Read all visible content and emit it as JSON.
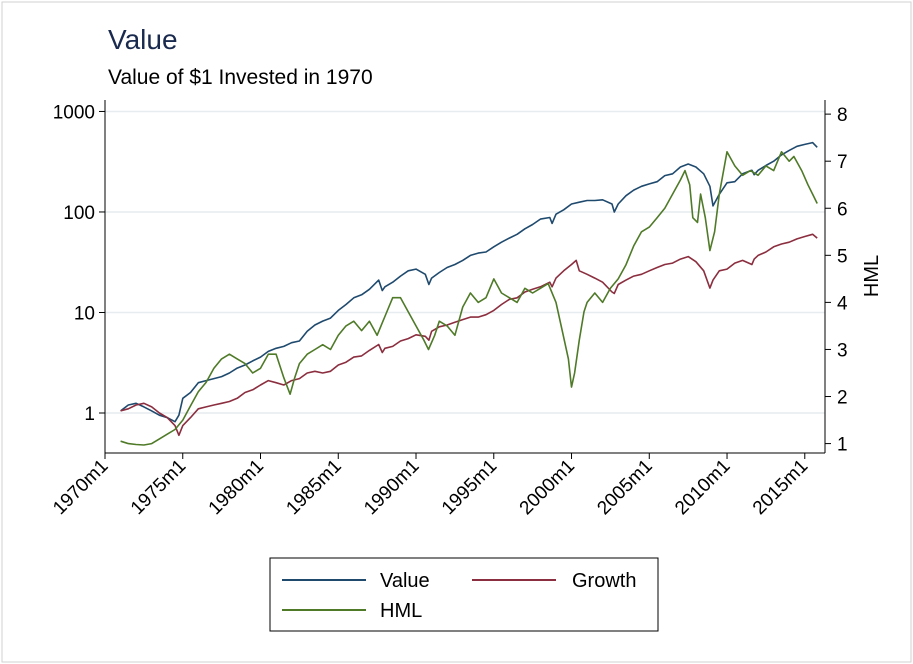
{
  "chart_data": {
    "type": "line",
    "title": "Value",
    "subtitle": "Value of $1 Invested in 1970",
    "x_tick_labels": [
      "1970m1",
      "1975m1",
      "1980m1",
      "1985m1",
      "1990m1",
      "1995m1",
      "2000m1",
      "2005m1",
      "2010m1",
      "2015m1"
    ],
    "x_tick_years": [
      1970,
      1975,
      1980,
      1985,
      1990,
      1995,
      2000,
      2005,
      2010,
      2015
    ],
    "xlim": [
      1970.0,
      2016.3
    ],
    "y_left": {
      "scale": "log",
      "ylim": [
        0.4,
        1300
      ],
      "ticks": [
        1,
        10,
        100,
        1000
      ],
      "tick_labels": [
        "1",
        "10",
        "100",
        "1000"
      ]
    },
    "y_right": {
      "label": "HML",
      "ylim": [
        0.8,
        8.3
      ],
      "ticks": [
        1,
        2,
        3,
        4,
        5,
        6,
        7,
        8
      ],
      "tick_labels": [
        "1",
        "2",
        "3",
        "4",
        "5",
        "6",
        "7",
        "8"
      ]
    },
    "grid": true,
    "legend_position": "bottom",
    "series": [
      {
        "name": "Value",
        "axis": "left",
        "color": "#1f4a6e",
        "x": [
          1971.0,
          1971.5,
          1972.0,
          1972.5,
          1973.0,
          1973.5,
          1974.0,
          1974.5,
          1974.75,
          1975.0,
          1975.5,
          1976.0,
          1976.5,
          1977.0,
          1977.5,
          1978.0,
          1978.5,
          1979.0,
          1979.5,
          1980.0,
          1980.5,
          1981.0,
          1981.5,
          1982.0,
          1982.5,
          1983.0,
          1983.5,
          1984.0,
          1984.5,
          1985.0,
          1985.5,
          1986.0,
          1986.5,
          1987.0,
          1987.6,
          1987.83,
          1988.0,
          1988.5,
          1989.0,
          1989.5,
          1990.0,
          1990.6,
          1990.83,
          1991.0,
          1991.5,
          1992.0,
          1992.5,
          1993.0,
          1993.5,
          1994.0,
          1994.5,
          1995.0,
          1995.5,
          1996.0,
          1996.5,
          1997.0,
          1997.5,
          1998.0,
          1998.6,
          1998.75,
          1999.0,
          1999.5,
          2000.0,
          2000.5,
          2001.0,
          2001.5,
          2002.0,
          2002.6,
          2002.75,
          2003.0,
          2003.5,
          2004.0,
          2004.5,
          2005.0,
          2005.5,
          2006.0,
          2006.5,
          2007.0,
          2007.5,
          2008.0,
          2008.5,
          2008.9,
          2009.1,
          2009.5,
          2010.0,
          2010.5,
          2011.0,
          2011.6,
          2011.75,
          2012.0,
          2012.5,
          2013.0,
          2013.5,
          2014.0,
          2014.5,
          2015.0,
          2015.5,
          2015.8
        ],
        "y": [
          1.05,
          1.2,
          1.25,
          1.15,
          1.05,
          0.95,
          0.9,
          0.82,
          0.95,
          1.4,
          1.6,
          2.0,
          2.1,
          2.2,
          2.3,
          2.5,
          2.8,
          3.0,
          3.3,
          3.6,
          4.1,
          4.4,
          4.6,
          5.0,
          5.2,
          6.5,
          7.5,
          8.2,
          8.8,
          10.5,
          12,
          14,
          15,
          17,
          21,
          16.5,
          18,
          20,
          23,
          26,
          27,
          24,
          19,
          22,
          25,
          28,
          30,
          33,
          37,
          39,
          40,
          45,
          50,
          55,
          60,
          68,
          75,
          85,
          88,
          77,
          95,
          105,
          120,
          125,
          130,
          130,
          132,
          120,
          100,
          120,
          145,
          165,
          180,
          190,
          200,
          230,
          240,
          280,
          300,
          280,
          240,
          180,
          115,
          150,
          195,
          200,
          240,
          260,
          235,
          260,
          290,
          320,
          370,
          410,
          450,
          470,
          490,
          440
        ]
      },
      {
        "name": "Growth",
        "axis": "left",
        "color": "#8b2e3f",
        "x": [
          1971.0,
          1971.5,
          1972.0,
          1972.5,
          1973.0,
          1973.5,
          1974.0,
          1974.5,
          1974.75,
          1975.0,
          1975.5,
          1976.0,
          1976.5,
          1977.0,
          1977.5,
          1978.0,
          1978.5,
          1979.0,
          1979.5,
          1980.0,
          1980.5,
          1981.0,
          1981.5,
          1982.0,
          1982.5,
          1983.0,
          1983.5,
          1984.0,
          1984.5,
          1985.0,
          1985.5,
          1986.0,
          1986.5,
          1987.0,
          1987.6,
          1987.83,
          1988.0,
          1988.5,
          1989.0,
          1989.5,
          1990.0,
          1990.6,
          1990.83,
          1991.0,
          1991.5,
          1992.0,
          1992.5,
          1993.0,
          1993.5,
          1994.0,
          1994.5,
          1995.0,
          1995.5,
          1996.0,
          1996.5,
          1997.0,
          1997.5,
          1998.0,
          1998.6,
          1998.75,
          1999.0,
          1999.5,
          2000.0,
          2000.3,
          2000.5,
          2001.0,
          2001.5,
          2002.0,
          2002.6,
          2002.75,
          2003.0,
          2003.5,
          2004.0,
          2004.5,
          2005.0,
          2005.5,
          2006.0,
          2006.5,
          2007.0,
          2007.5,
          2008.0,
          2008.5,
          2008.9,
          2009.1,
          2009.5,
          2010.0,
          2010.5,
          2011.0,
          2011.6,
          2011.75,
          2012.0,
          2012.5,
          2013.0,
          2013.5,
          2014.0,
          2014.5,
          2015.0,
          2015.5,
          2015.8
        ],
        "y": [
          1.05,
          1.1,
          1.2,
          1.25,
          1.15,
          1.0,
          0.9,
          0.75,
          0.6,
          0.75,
          0.9,
          1.1,
          1.15,
          1.2,
          1.25,
          1.3,
          1.4,
          1.6,
          1.7,
          1.9,
          2.1,
          2.0,
          1.9,
          2.1,
          2.2,
          2.5,
          2.6,
          2.5,
          2.6,
          3.0,
          3.2,
          3.6,
          3.7,
          4.2,
          4.8,
          4.0,
          4.4,
          4.6,
          5.2,
          5.5,
          6.0,
          5.8,
          5.3,
          6.5,
          7.2,
          7.5,
          8.0,
          8.5,
          9.0,
          9.0,
          9.5,
          10.5,
          12,
          13.5,
          14,
          16,
          17,
          18,
          20,
          18,
          22,
          26,
          30,
          33,
          26,
          24,
          22,
          20,
          16,
          15.5,
          19,
          21,
          23,
          24,
          26,
          28,
          30,
          31,
          34,
          36,
          32,
          26,
          17.5,
          21,
          26,
          27,
          31,
          33,
          30,
          34,
          37,
          40,
          45,
          48,
          50,
          54,
          57,
          60,
          55
        ]
      },
      {
        "name": "HML",
        "axis": "right",
        "color": "#4f7a28",
        "x": [
          1971.0,
          1971.5,
          1972.0,
          1972.5,
          1973.0,
          1973.5,
          1974.0,
          1974.5,
          1975.0,
          1975.5,
          1976.0,
          1976.5,
          1977.0,
          1977.5,
          1978.0,
          1978.5,
          1979.0,
          1979.5,
          1980.0,
          1980.5,
          1981.0,
          1981.5,
          1981.9,
          1982.2,
          1982.5,
          1983.0,
          1983.5,
          1984.0,
          1984.5,
          1985.0,
          1985.5,
          1986.0,
          1986.5,
          1987.0,
          1987.5,
          1988.0,
          1988.5,
          1989.0,
          1989.5,
          1990.0,
          1990.5,
          1990.8,
          1991.2,
          1991.5,
          1992.0,
          1992.5,
          1993.0,
          1993.5,
          1994.0,
          1994.5,
          1995.0,
          1995.5,
          1996.0,
          1996.5,
          1997.0,
          1997.5,
          1998.0,
          1998.5,
          1999.0,
          1999.4,
          1999.8,
          2000.0,
          2000.2,
          2000.5,
          2000.8,
          2001.0,
          2001.5,
          2002.0,
          2002.5,
          2003.0,
          2003.5,
          2004.0,
          2004.5,
          2005.0,
          2005.5,
          2006.0,
          2006.5,
          2007.0,
          2007.3,
          2007.6,
          2007.8,
          2008.1,
          2008.3,
          2008.6,
          2008.9,
          2009.2,
          2009.5,
          2010.0,
          2010.5,
          2011.0,
          2011.5,
          2012.0,
          2012.5,
          2013.0,
          2013.5,
          2014.0,
          2014.3,
          2014.8,
          2015.2,
          2015.5,
          2015.8
        ],
        "y": [
          1.05,
          1.0,
          0.98,
          0.97,
          1.0,
          1.1,
          1.2,
          1.3,
          1.5,
          1.8,
          2.1,
          2.3,
          2.6,
          2.8,
          2.9,
          2.8,
          2.7,
          2.5,
          2.6,
          2.9,
          2.9,
          2.4,
          2.05,
          2.4,
          2.7,
          2.9,
          3.0,
          3.1,
          3.0,
          3.3,
          3.5,
          3.6,
          3.4,
          3.6,
          3.3,
          3.7,
          4.1,
          4.1,
          3.8,
          3.5,
          3.2,
          3.0,
          3.3,
          3.6,
          3.5,
          3.3,
          3.9,
          4.2,
          4.0,
          4.1,
          4.5,
          4.2,
          4.1,
          4.0,
          4.3,
          4.2,
          4.3,
          4.4,
          4.0,
          3.4,
          2.8,
          2.2,
          2.5,
          3.2,
          3.8,
          4.0,
          4.2,
          4.0,
          4.3,
          4.5,
          4.8,
          5.2,
          5.5,
          5.6,
          5.8,
          6.0,
          6.3,
          6.6,
          6.8,
          6.5,
          5.8,
          5.7,
          6.3,
          5.8,
          5.1,
          5.5,
          6.3,
          7.2,
          6.9,
          6.7,
          6.8,
          6.7,
          6.9,
          6.8,
          7.2,
          7.0,
          7.1,
          6.8,
          6.5,
          6.3,
          6.1
        ]
      }
    ]
  }
}
